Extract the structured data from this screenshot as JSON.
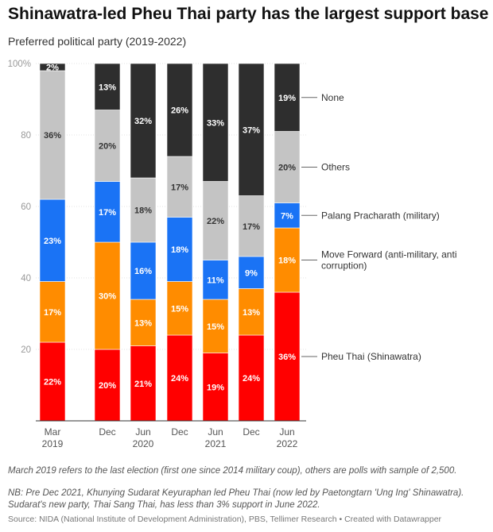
{
  "title": "Shinawatra-led Pheu Thai party has the largest support base",
  "subtitle": "Preferred political party (2019-2022)",
  "chart_data": {
    "type": "bar",
    "stacked": true,
    "categories": [
      {
        "top": "Mar",
        "bottom": "2019"
      },
      {
        "top": "Dec",
        "bottom": ""
      },
      {
        "top": "Jun",
        "bottom": "2020"
      },
      {
        "top": "Dec",
        "bottom": ""
      },
      {
        "top": "Jun",
        "bottom": "2021"
      },
      {
        "top": "Dec",
        "bottom": ""
      },
      {
        "top": "Jun",
        "bottom": "2022"
      }
    ],
    "ylim": [
      0,
      100
    ],
    "yticks": [
      {
        "value": 0,
        "label": ""
      },
      {
        "value": 20,
        "label": "20"
      },
      {
        "value": 40,
        "label": "40"
      },
      {
        "value": 60,
        "label": "60"
      },
      {
        "value": 80,
        "label": "80"
      },
      {
        "value": 100,
        "label": "100%"
      }
    ],
    "series": [
      {
        "name": "Pheu Thai (Shinawatra)",
        "color": "#ff0000",
        "values": [
          22,
          20,
          21,
          24,
          19,
          24,
          36
        ]
      },
      {
        "name": "Move Forward (anti-military, anti corruption)",
        "legend_lines": [
          "Move Forward (anti-military, anti",
          "corruption)"
        ],
        "color": "#ff8c00",
        "values": [
          17,
          30,
          13,
          15,
          15,
          13,
          18
        ]
      },
      {
        "name": "Palang Pracharath (military)",
        "color": "#1a73f5",
        "values": [
          23,
          17,
          16,
          18,
          11,
          9,
          7
        ]
      },
      {
        "name": "Others",
        "color": "#c4c4c4",
        "values": [
          36,
          20,
          18,
          17,
          22,
          17,
          20
        ]
      },
      {
        "name": "None",
        "color": "#2e2e2e",
        "values": [
          2,
          13,
          32,
          26,
          33,
          37,
          19
        ]
      }
    ]
  },
  "notes": {
    "line1": "March 2019 refers to the last election (first one since 2014 military coup), others are polls with sample of 2,500.",
    "line2": "NB: Pre Dec 2021, Khunying Sudarat Keyuraphan led Pheu Thai (now led by Paetongtarn 'Ung Ing' Shinawatra). Sudarat's new party, Thai Sang Thai, has less than 3% support in June 2022."
  },
  "source": "Source: NIDA (National Institute of Development Administration), PBS, Tellimer Research • Created with Datawrapper"
}
